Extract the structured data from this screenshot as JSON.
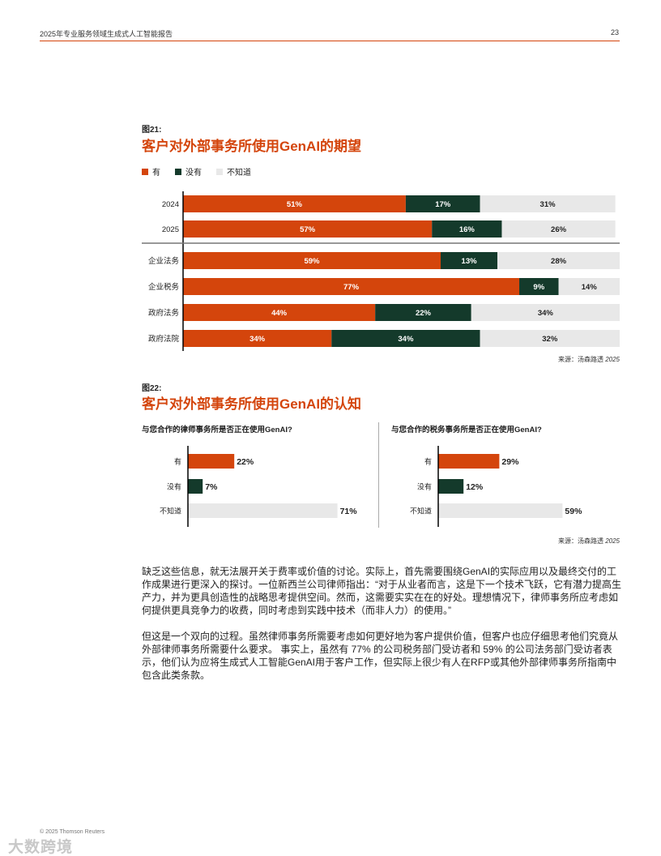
{
  "header": {
    "title": "2025年专业服务领域生成式人工智能报告",
    "page": "23"
  },
  "figure21": {
    "label": "图21:",
    "title": "客户对外部事务所使用GenAI的期望",
    "legend": [
      {
        "label": "有",
        "color": "#d4450c"
      },
      {
        "label": "没有",
        "color": "#143a2b"
      },
      {
        "label": "不知道",
        "color": "#e8e8e8"
      }
    ],
    "source_prefix": "来源：汤森路透",
    "source_year": "2025"
  },
  "figure22": {
    "label": "图22:",
    "title": "客户对外部事务所使用GenAI的认知",
    "left_title": "与您合作的律师事务所是否正在使用GenAI?",
    "right_title": "与您合作的税务事务所是否正在使用GenAI?",
    "source_prefix": "来源：汤森路透",
    "source_year": "2025"
  },
  "chart_data": [
    {
      "type": "bar",
      "orientation": "horizontal",
      "stacked": true,
      "categories": [
        "2024",
        "2025",
        "企业法务",
        "企业税务",
        "政府法务",
        "政府法院"
      ],
      "series": [
        {
          "name": "有",
          "values": [
            51,
            57,
            59,
            77,
            44,
            34
          ],
          "color": "#d4450c"
        },
        {
          "name": "没有",
          "values": [
            17,
            16,
            13,
            9,
            22,
            34
          ],
          "color": "#143a2b"
        },
        {
          "name": "不知道",
          "values": [
            31,
            26,
            28,
            14,
            34,
            32
          ],
          "color": "#e8e8e8"
        }
      ],
      "xlim": [
        0,
        100
      ],
      "legend": "top-left",
      "grid": false
    },
    {
      "type": "bar",
      "orientation": "horizontal",
      "categories": [
        "有",
        "没有",
        "不知道"
      ],
      "values": [
        22,
        7,
        71
      ],
      "colors": [
        "#d4450c",
        "#143a2b",
        "#e8e8e8"
      ],
      "xlim": [
        0,
        100
      ]
    },
    {
      "type": "bar",
      "orientation": "horizontal",
      "categories": [
        "有",
        "没有",
        "不知道"
      ],
      "values": [
        29,
        12,
        59
      ],
      "colors": [
        "#d4450c",
        "#143a2b",
        "#e8e8e8"
      ],
      "xlim": [
        0,
        100
      ]
    }
  ],
  "body": {
    "paragraph1": "缺乏这些信息，就无法展开关于费率或价值的讨论。实际上，首先需要围绕GenAI的实际应用以及最终交付的工作成果进行更深入的探讨。一位新西兰公司律师指出：“对于从业者而言，这是下一个技术飞跃，它有潜力提高生产力，并为更具创造性的战略思考提供空间。然而，这需要实实在在的好处。理想情况下，律师事务所应考虑如何提供更具竞争力的收费，同时考虑到实践中技术（而非人力）的使用。”",
    "paragraph2": "但这是一个双向的过程。虽然律师事务所需要考虑如何更好地为客户提供价值，但客户也应仔细思考他们究竟从外部律师事务所需要什么要求。 事实上，虽然有 77% 的公司税务部门受访者和 59% 的公司法务部门受访者表示，他们认为应将生成式人工智能GenAI用于客户工作，但实际上很少有人在RFP或其他外部律师事务所指南中包含此类条款。"
  },
  "footer": {
    "copyright": "© 2025 Thomson Reuters",
    "watermark": "大数跨境"
  }
}
